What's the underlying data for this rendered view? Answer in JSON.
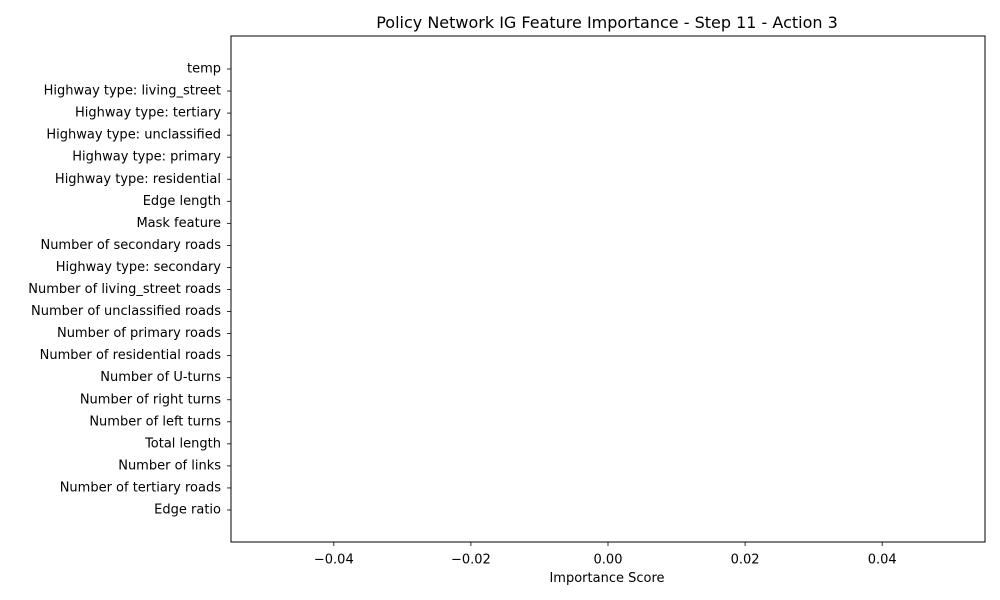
{
  "chart_data": {
    "type": "bar",
    "orientation": "horizontal",
    "title": "Policy Network IG Feature Importance - Step 11 - Action 3",
    "xlabel": "Importance Score",
    "ylabel": "",
    "categories": [
      "temp",
      "Highway type: living_street",
      "Highway type: tertiary",
      "Highway type: unclassified",
      "Highway type: primary",
      "Highway type: residential",
      "Edge length",
      "Mask feature",
      "Number of secondary roads",
      "Highway type: secondary",
      "Number of living_street roads",
      "Number of unclassified roads",
      "Number of primary roads",
      "Number of residential roads",
      "Number of U-turns",
      "Number of right turns",
      "Number of left turns",
      "Total length",
      "Number of links",
      "Number of tertiary roads",
      "Edge ratio"
    ],
    "values": [
      0,
      0,
      0,
      0,
      0,
      0,
      0,
      0,
      0,
      0,
      0,
      0,
      0,
      0,
      0,
      0,
      0,
      0,
      0,
      0,
      0
    ],
    "xlim": [
      -0.055,
      0.055
    ],
    "xticks": [
      -0.04,
      -0.02,
      0.0,
      0.02,
      0.04
    ],
    "xtick_labels": [
      "−0.04",
      "−0.02",
      "0.00",
      "0.02",
      "0.04"
    ],
    "grid": false,
    "legend": "none",
    "bar_color": "#1f77b4"
  }
}
